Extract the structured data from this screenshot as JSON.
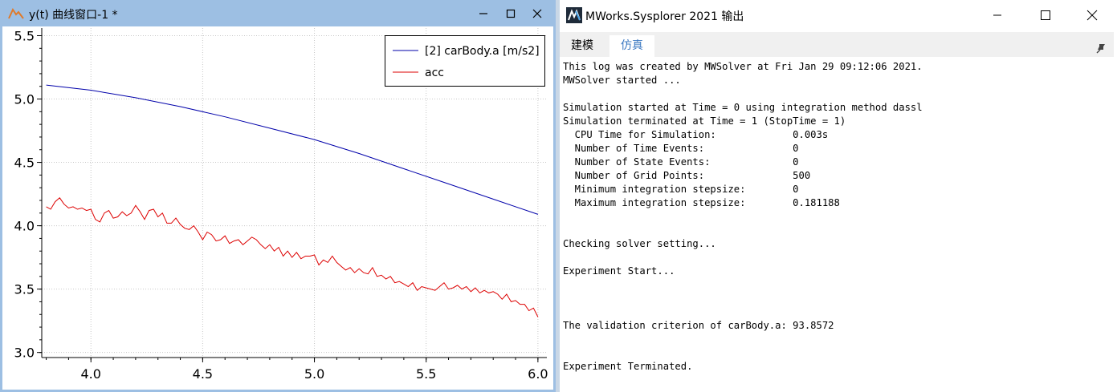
{
  "plot_window": {
    "title": "y(t) 曲线窗口-1 *",
    "controls": [
      "minimize",
      "maximize",
      "close"
    ]
  },
  "output_window": {
    "title": "MWorks.Sysplorer 2021 输出",
    "tabs": [
      {
        "label": "建模",
        "active": false
      },
      {
        "label": "仿真",
        "active": true
      }
    ],
    "log_lines": [
      "This log was created by MWSolver at Fri Jan 29 09:12:06 2021.",
      "MWSolver started ...",
      "",
      "Simulation started at Time = 0 using integration method dassl",
      "Simulation terminated at Time = 1 (StopTime = 1)",
      "  CPU Time for Simulation:             0.003s",
      "  Number of Time Events:               0",
      "  Number of State Events:              0",
      "  Number of Grid Points:               500",
      "  Minimum integration stepsize:        0",
      "  Maximum integration stepsize:        0.181188",
      "",
      "",
      "Checking solver setting...",
      "",
      "Experiment Start...",
      "",
      "",
      "",
      "The validation criterion of carBody.a: 93.8572",
      "",
      "",
      "Experiment Terminated."
    ]
  },
  "colors": {
    "series_1": "#0000aa",
    "series_2": "#dd0000",
    "titlebar_active": "#9dbfe3",
    "tab_active_text": "#3b78c2"
  },
  "chart_data": {
    "type": "line",
    "title": "",
    "xlabel": "",
    "ylabel": "",
    "xlim": [
      3.78,
      6.04
    ],
    "ylim": [
      2.96,
      5.56
    ],
    "xticks": [
      4.0,
      4.5,
      5.0,
      5.5,
      6.0
    ],
    "xtick_labels": [
      "4.0",
      "4.5",
      "5.0",
      "5.5",
      "6.0"
    ],
    "yticks": [
      3.0,
      3.5,
      4.0,
      4.5,
      5.0,
      5.5
    ],
    "ytick_labels": [
      "3.0",
      "3.5",
      "4.0",
      "4.5",
      "5.0",
      "5.5"
    ],
    "grid": true,
    "grid_style": "dotted",
    "legend_position": "top-right",
    "series": [
      {
        "name": "[2] carBody.a [m/s2]",
        "color": "#0000aa",
        "x": [
          3.8,
          4.0,
          4.2,
          4.4,
          4.6,
          4.8,
          5.0,
          5.2,
          5.4,
          5.6,
          5.8,
          6.0
        ],
        "y": [
          5.11,
          5.07,
          5.01,
          4.94,
          4.86,
          4.77,
          4.68,
          4.57,
          4.45,
          4.33,
          4.21,
          4.09
        ]
      },
      {
        "name": "acc",
        "color": "#dd0000",
        "x": [
          3.8,
          3.82,
          3.84,
          3.86,
          3.88,
          3.9,
          3.92,
          3.94,
          3.96,
          3.98,
          4.0,
          4.02,
          4.04,
          4.06,
          4.08,
          4.1,
          4.12,
          4.14,
          4.16,
          4.18,
          4.2,
          4.22,
          4.24,
          4.26,
          4.28,
          4.3,
          4.32,
          4.34,
          4.36,
          4.38,
          4.4,
          4.42,
          4.44,
          4.46,
          4.48,
          4.5,
          4.52,
          4.54,
          4.56,
          4.58,
          4.6,
          4.62,
          4.64,
          4.66,
          4.68,
          4.7,
          4.72,
          4.74,
          4.76,
          4.78,
          4.8,
          4.82,
          4.84,
          4.86,
          4.88,
          4.9,
          4.92,
          4.94,
          4.96,
          4.98,
          5.0,
          5.02,
          5.04,
          5.06,
          5.08,
          5.1,
          5.12,
          5.14,
          5.16,
          5.18,
          5.2,
          5.22,
          5.24,
          5.26,
          5.28,
          5.3,
          5.32,
          5.34,
          5.36,
          5.38,
          5.4,
          5.42,
          5.44,
          5.46,
          5.48,
          5.5,
          5.52,
          5.54,
          5.56,
          5.58,
          5.6,
          5.62,
          5.64,
          5.66,
          5.68,
          5.7,
          5.72,
          5.74,
          5.76,
          5.78,
          5.8,
          5.82,
          5.84,
          5.86,
          5.88,
          5.9,
          5.92,
          5.94,
          5.96,
          5.98,
          6.0
        ],
        "y": [
          4.15,
          4.13,
          4.19,
          4.22,
          4.17,
          4.14,
          4.15,
          4.13,
          4.14,
          4.12,
          4.13,
          4.05,
          4.03,
          4.1,
          4.12,
          4.06,
          4.07,
          4.11,
          4.08,
          4.1,
          4.16,
          4.11,
          4.05,
          4.12,
          4.13,
          4.07,
          4.1,
          4.02,
          4.02,
          4.06,
          4.01,
          3.98,
          3.97,
          4.0,
          3.95,
          3.89,
          3.95,
          3.93,
          3.88,
          3.89,
          3.92,
          3.86,
          3.88,
          3.89,
          3.85,
          3.88,
          3.91,
          3.89,
          3.85,
          3.82,
          3.85,
          3.8,
          3.83,
          3.76,
          3.8,
          3.75,
          3.79,
          3.74,
          3.76,
          3.76,
          3.77,
          3.69,
          3.73,
          3.71,
          3.76,
          3.71,
          3.68,
          3.65,
          3.67,
          3.63,
          3.66,
          3.63,
          3.62,
          3.67,
          3.6,
          3.61,
          3.58,
          3.6,
          3.55,
          3.56,
          3.54,
          3.52,
          3.55,
          3.49,
          3.52,
          3.51,
          3.5,
          3.49,
          3.52,
          3.55,
          3.5,
          3.51,
          3.53,
          3.5,
          3.52,
          3.48,
          3.51,
          3.47,
          3.49,
          3.47,
          3.48,
          3.46,
          3.42,
          3.46,
          3.4,
          3.41,
          3.38,
          3.38,
          3.33,
          3.35,
          3.28
        ]
      }
    ]
  }
}
